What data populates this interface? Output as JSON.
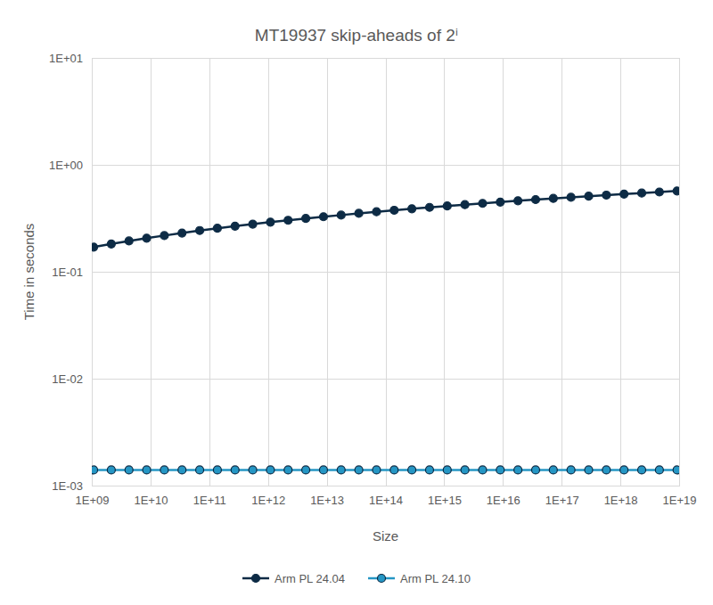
{
  "chart_data": {
    "type": "line",
    "title": "MT19937 skip-aheads of 2ⁱ",
    "x_label": "Size",
    "y_label": "Time in seconds",
    "log": true,
    "grid": true,
    "legend": "bottom",
    "marker": "circle",
    "line_style": "solid",
    "x": [
      1073741824,
      2147483648,
      4294967296,
      8589934592,
      17179869184,
      34359738368,
      68719476736,
      137438953472,
      274877906944,
      549755813888,
      1099511627776,
      2199023255552,
      4398046511104,
      8796093022208,
      17592186044416,
      35184372088832,
      70368744177664,
      140737488355328,
      281474976710656,
      562949953421312,
      1125899906842624,
      2251799813685248,
      4503599627370496,
      9007199254740992,
      18014398509481984,
      36028797018963968,
      72057594037927936,
      144115188075855872,
      288230376151711744,
      576460752303423488,
      1152921504606846976,
      2305843009213693952,
      4611686018427387904,
      9223372036854775808
    ],
    "xlim": [
      1000000000.0,
      1e+19
    ],
    "xticks": [
      {
        "value": 1000000000.0,
        "label": "1E+09"
      },
      {
        "value": 10000000000.0,
        "label": "1E+10"
      },
      {
        "value": 100000000000.0,
        "label": "1E+11"
      },
      {
        "value": 1000000000000.0,
        "label": "1E+12"
      },
      {
        "value": 10000000000000.0,
        "label": "1E+13"
      },
      {
        "value": 100000000000000.0,
        "label": "1E+14"
      },
      {
        "value": 1000000000000000.0,
        "label": "1E+15"
      },
      {
        "value": 1e+16,
        "label": "1E+16"
      },
      {
        "value": 1e+17,
        "label": "1E+17"
      },
      {
        "value": 1e+18,
        "label": "1E+18"
      },
      {
        "value": 1e+19,
        "label": "1E+19"
      }
    ],
    "ylim": [
      0.001,
      10
    ],
    "yticks": [
      {
        "value": 0.001,
        "label": "1E-03"
      },
      {
        "value": 0.01,
        "label": "1E-02"
      },
      {
        "value": 0.1,
        "label": "1E-01"
      },
      {
        "value": 1,
        "label": "1E+00"
      },
      {
        "value": 10,
        "label": "1E+01"
      }
    ],
    "series": [
      {
        "name": "Arm PL 24.04",
        "color": "#0d2b45",
        "values": [
          0.17,
          0.182,
          0.194,
          0.206,
          0.218,
          0.23,
          0.243,
          0.255,
          0.267,
          0.279,
          0.291,
          0.303,
          0.315,
          0.327,
          0.339,
          0.352,
          0.364,
          0.376,
          0.388,
          0.4,
          0.412,
          0.424,
          0.436,
          0.448,
          0.461,
          0.473,
          0.485,
          0.497,
          0.509,
          0.521,
          0.533,
          0.545,
          0.557,
          0.57
        ]
      },
      {
        "name": "Arm PL 24.10",
        "color": "#2596c4",
        "values": [
          0.0014,
          0.0014,
          0.0014,
          0.0014,
          0.0014,
          0.0014,
          0.0014,
          0.0014,
          0.0014,
          0.0014,
          0.0014,
          0.0014,
          0.0014,
          0.0014,
          0.0014,
          0.0014,
          0.0014,
          0.0014,
          0.0014,
          0.0014,
          0.0014,
          0.0014,
          0.0014,
          0.0014,
          0.0014,
          0.0014,
          0.0014,
          0.0014,
          0.0014,
          0.0014,
          0.0014,
          0.0014,
          0.0014,
          0.0014
        ]
      }
    ]
  }
}
